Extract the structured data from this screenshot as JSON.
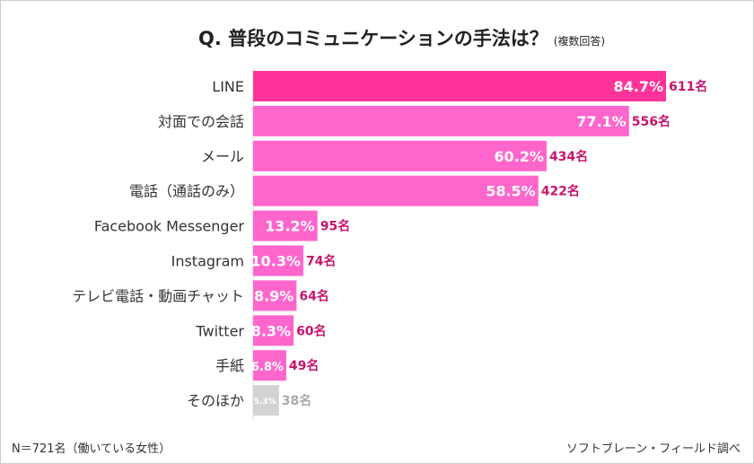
{
  "chart_data": {
    "type": "bar",
    "orientation": "horizontal",
    "title": "Q.  普段のコミュニケーションの手法は？",
    "subtitle": "(複数回答)",
    "categories": [
      "LINE",
      "対面での会話",
      "メール",
      "電話（通話のみ）",
      "Facebook Messenger",
      "Instagram",
      "テレビ電話・動画チャット",
      "Twitter",
      "手紙",
      "そのほか"
    ],
    "values": [
      84.7,
      77.1,
      60.2,
      58.5,
      13.2,
      10.3,
      8.9,
      8.3,
      6.8,
      5.3
    ],
    "value_labels": [
      "84.7%",
      "77.1%",
      "60.2%",
      "58.5%",
      "13.2%",
      "10.3%",
      "8.9%",
      "8.3%",
      "6.8%",
      "5.3%"
    ],
    "counts": [
      "611名",
      "556名",
      "434名",
      "422名",
      "95名",
      "74名",
      "64名",
      "60名",
      "49名",
      "38名"
    ],
    "xlim": [
      0,
      100
    ],
    "grid": false,
    "colors": {
      "top": "#ff3399",
      "default": "#ff66cc",
      "other": "#d3d3d3",
      "count": "#c8146e",
      "count_other": "#aaaaaa"
    }
  },
  "footer": {
    "sample": "N＝721名（働いている女性）",
    "source": "ソフトブレーン・フィールド調べ"
  }
}
